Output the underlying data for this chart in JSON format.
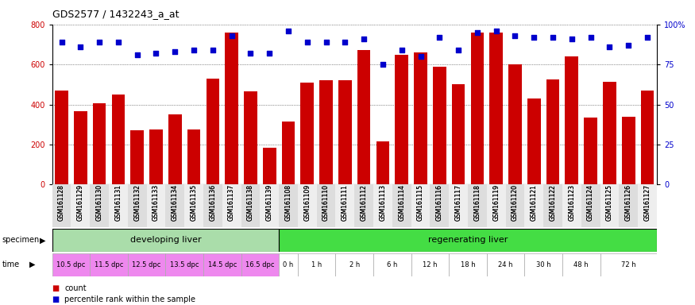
{
  "title": "GDS2577 / 1432243_a_at",
  "gsm_labels": [
    "GSM161128",
    "GSM161129",
    "GSM161130",
    "GSM161131",
    "GSM161132",
    "GSM161133",
    "GSM161134",
    "GSM161135",
    "GSM161136",
    "GSM161137",
    "GSM161138",
    "GSM161139",
    "GSM161108",
    "GSM161109",
    "GSM161110",
    "GSM161111",
    "GSM161112",
    "GSM161113",
    "GSM161114",
    "GSM161115",
    "GSM161116",
    "GSM161117",
    "GSM161118",
    "GSM161119",
    "GSM161120",
    "GSM161121",
    "GSM161122",
    "GSM161123",
    "GSM161124",
    "GSM161125",
    "GSM161126",
    "GSM161127"
  ],
  "counts": [
    470,
    365,
    405,
    450,
    270,
    275,
    350,
    275,
    530,
    760,
    465,
    185,
    315,
    510,
    520,
    520,
    670,
    215,
    650,
    660,
    590,
    500,
    760,
    760,
    600,
    430,
    525,
    640,
    335,
    515,
    340,
    470
  ],
  "percentile_ranks": [
    89,
    86,
    89,
    89,
    81,
    82,
    83,
    84,
    84,
    93,
    82,
    82,
    96,
    89,
    89,
    89,
    91,
    75,
    84,
    80,
    92,
    84,
    95,
    96,
    93,
    92,
    92,
    91,
    92,
    86,
    87,
    92
  ],
  "count_color": "#cc0000",
  "percentile_color": "#0000cc",
  "ylim_left": [
    0,
    800
  ],
  "ylim_right": [
    0,
    100
  ],
  "yticks_left": [
    0,
    200,
    400,
    600,
    800
  ],
  "ytick_labels_left": [
    "0",
    "200",
    "400",
    "600",
    "800"
  ],
  "yticks_right": [
    0,
    25,
    50,
    75,
    100
  ],
  "ytick_labels_right": [
    "0",
    "25",
    "50",
    "75",
    "100%"
  ],
  "specimen_groups": [
    {
      "label": "developing liver",
      "start": 0,
      "end": 12,
      "color": "#aaddaa"
    },
    {
      "label": "regenerating liver",
      "start": 12,
      "end": 32,
      "color": "#44dd44"
    }
  ],
  "time_groups": [
    {
      "label": "10.5 dpc",
      "start": 0,
      "end": 2,
      "color": "#ee88ee"
    },
    {
      "label": "11.5 dpc",
      "start": 2,
      "end": 4,
      "color": "#ee88ee"
    },
    {
      "label": "12.5 dpc",
      "start": 4,
      "end": 6,
      "color": "#ee88ee"
    },
    {
      "label": "13.5 dpc",
      "start": 6,
      "end": 8,
      "color": "#ee88ee"
    },
    {
      "label": "14.5 dpc",
      "start": 8,
      "end": 10,
      "color": "#ee88ee"
    },
    {
      "label": "16.5 dpc",
      "start": 10,
      "end": 12,
      "color": "#ee88ee"
    },
    {
      "label": "0 h",
      "start": 12,
      "end": 13,
      "color": "#ffffff"
    },
    {
      "label": "1 h",
      "start": 13,
      "end": 15,
      "color": "#ffffff"
    },
    {
      "label": "2 h",
      "start": 15,
      "end": 17,
      "color": "#ffffff"
    },
    {
      "label": "6 h",
      "start": 17,
      "end": 19,
      "color": "#ffffff"
    },
    {
      "label": "12 h",
      "start": 19,
      "end": 21,
      "color": "#ffffff"
    },
    {
      "label": "18 h",
      "start": 21,
      "end": 23,
      "color": "#ffffff"
    },
    {
      "label": "24 h",
      "start": 23,
      "end": 25,
      "color": "#ffffff"
    },
    {
      "label": "30 h",
      "start": 25,
      "end": 27,
      "color": "#ffffff"
    },
    {
      "label": "48 h",
      "start": 27,
      "end": 29,
      "color": "#ffffff"
    },
    {
      "label": "72 h",
      "start": 29,
      "end": 32,
      "color": "#ffffff"
    }
  ],
  "bg_color": "#ffffff",
  "grid_color": "#333333",
  "bar_width": 0.7,
  "fig_width": 8.75,
  "fig_height": 3.84,
  "dpi": 100
}
